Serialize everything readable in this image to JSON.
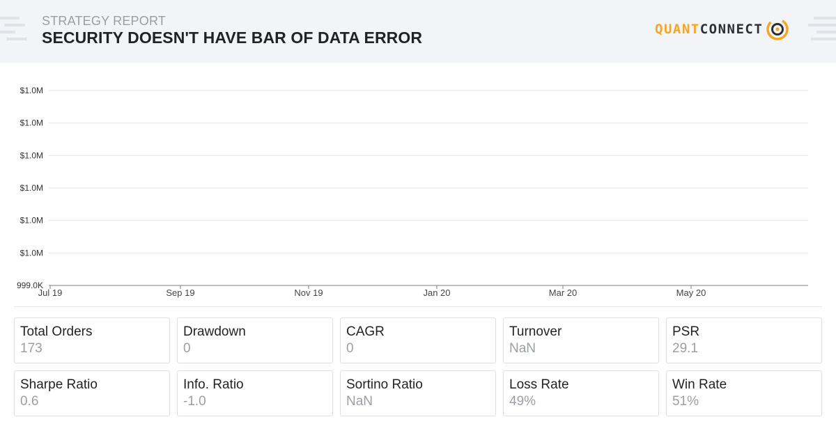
{
  "header": {
    "subtitle": "STRATEGY REPORT",
    "title": "SECURITY DOESN'T HAVE BAR OF DATA ERROR",
    "logo_quant": "QUANT",
    "logo_connect": "CONNECT"
  },
  "chart_data": {
    "type": "line",
    "title": "",
    "xlabel": "",
    "ylabel": "",
    "y_tick_labels": [
      "$1.0M",
      "$1.0M",
      "$1.0M",
      "$1.0M",
      "$1.0M",
      "$1.0M",
      "999.0K"
    ],
    "x_tick_labels": [
      "Jul 19",
      "Sep 19",
      "Nov 19",
      "Jan 20",
      "Mar 20",
      "May 20"
    ],
    "grid": true,
    "series": [
      {
        "values": []
      }
    ]
  },
  "metrics": [
    {
      "label": "Total Orders",
      "value": "173"
    },
    {
      "label": "Drawdown",
      "value": "0"
    },
    {
      "label": "CAGR",
      "value": "0"
    },
    {
      "label": "Turnover",
      "value": "NaN"
    },
    {
      "label": "PSR",
      "value": "29.1"
    },
    {
      "label": "Sharpe Ratio",
      "value": "0.6"
    },
    {
      "label": "Info. Ratio",
      "value": "-1.0"
    },
    {
      "label": "Sortino Ratio",
      "value": "NaN"
    },
    {
      "label": "Loss Rate",
      "value": "49%"
    },
    {
      "label": "Win Rate",
      "value": "51%"
    }
  ]
}
